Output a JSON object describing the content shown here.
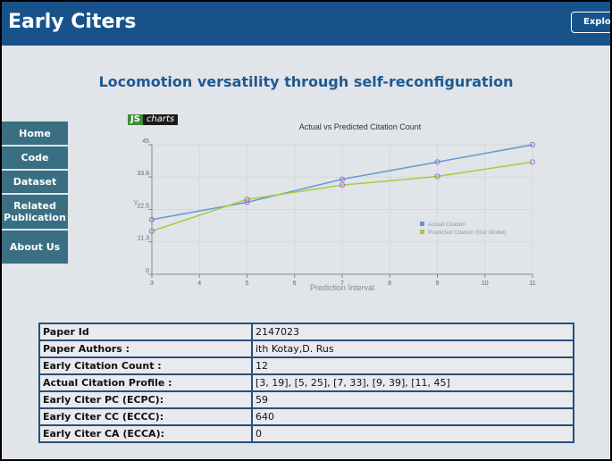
{
  "header": {
    "brand": "Early Citers",
    "explore_label": "Explore"
  },
  "page_title": "Locomotion versatility through self-reconfiguration",
  "sidebar": {
    "items": [
      {
        "label": "Home"
      },
      {
        "label": "Code"
      },
      {
        "label": "Dataset"
      },
      {
        "label": "Related Publication"
      },
      {
        "label": "About Us"
      }
    ]
  },
  "chart_logo": {
    "js": "JS",
    "charts": "charts"
  },
  "chart_data": {
    "type": "line",
    "title": "Actual vs Predicted Citation Count",
    "xlabel": "Prediction Interval",
    "ylabel": "Y",
    "x_ticks": [
      "3",
      "4",
      "5",
      "6",
      "7",
      "8",
      "9",
      "10",
      "11"
    ],
    "y_ticks": [
      "0",
      "11.3",
      "22.5",
      "33.8",
      "45"
    ],
    "xlim": [
      3,
      11
    ],
    "ylim": [
      0,
      45
    ],
    "grid": true,
    "legend_position": "right",
    "series": [
      {
        "name": "Actual Citation",
        "color": "#5b9bd5",
        "points": [
          [
            3,
            19
          ],
          [
            5,
            25
          ],
          [
            7,
            33
          ],
          [
            9,
            39
          ],
          [
            11,
            45
          ]
        ]
      },
      {
        "name": "Predicted Citation (Our Model)",
        "color": "#a6cc3a",
        "points": [
          [
            3,
            15
          ],
          [
            5,
            26
          ],
          [
            7,
            31
          ],
          [
            9,
            34
          ],
          [
            11,
            39
          ]
        ]
      }
    ]
  },
  "table": {
    "rows": [
      {
        "key": "Paper Id",
        "value": "2147023"
      },
      {
        "key": "Paper Authors :",
        "value": "ith Kotay,D. Rus"
      },
      {
        "key": "Early Citation Count :",
        "value": "12"
      },
      {
        "key": "Actual Citation Profile :",
        "value": "[3, 19], [5, 25], [7, 33], [9, 39], [11, 45]"
      },
      {
        "key": "Early Citer PC (ECPC):",
        "value": "59"
      },
      {
        "key": "Early Citer CC (ECCC):",
        "value": "640"
      },
      {
        "key": "Early Citer CA (ECCA):",
        "value": "0"
      }
    ]
  }
}
